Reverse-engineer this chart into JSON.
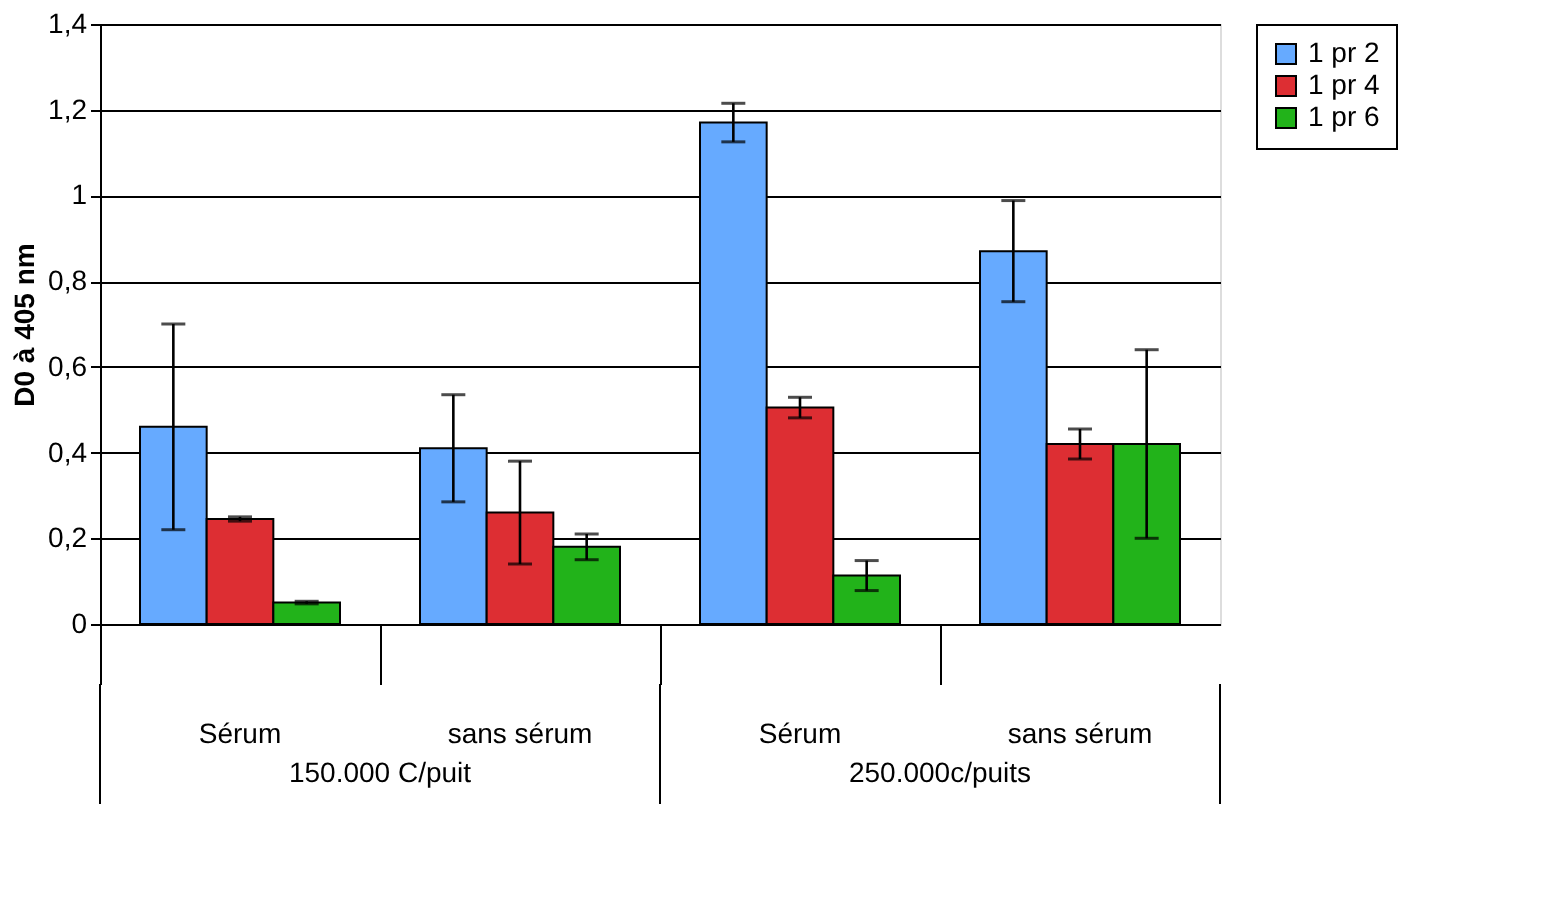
{
  "chart_data": {
    "type": "bar",
    "ylabel": "D0 à 405 nm",
    "categories": [
      "Sérum",
      "sans sérum",
      "Sérum",
      "sans sérum"
    ],
    "series": [
      {
        "name": "1 pr 2",
        "color": "#66aaff",
        "values": [
          0.46,
          0.41,
          1.17,
          0.87
        ],
        "errors": [
          0.24,
          0.125,
          0.045,
          0.118
        ]
      },
      {
        "name": "1 pr 4",
        "color": "#dd2e33",
        "values": [
          0.245,
          0.26,
          0.505,
          0.42
        ],
        "errors": [
          0.005,
          0.12,
          0.024,
          0.035
        ]
      },
      {
        "name": "1 pr 6",
        "color": "#22b31a",
        "values": [
          0.05,
          0.18,
          0.113,
          0.42
        ],
        "errors": [
          0.003,
          0.03,
          0.035,
          0.22
        ]
      }
    ],
    "annotations": [
      "150.000 C/puit",
      "250.000c/puits"
    ],
    "ylim": [
      0,
      1.4
    ],
    "yticks": [
      {
        "value": 0,
        "label": "0"
      },
      {
        "value": 0.2,
        "label": "0,2"
      },
      {
        "value": 0.4,
        "label": "0,4"
      },
      {
        "value": 0.6,
        "label": "0,6"
      },
      {
        "value": 0.8,
        "label": "0,8"
      },
      {
        "value": 1,
        "label": "1"
      },
      {
        "value": 1.2,
        "label": "1,2"
      },
      {
        "value": 1.4,
        "label": "1,4"
      }
    ],
    "grid": "y",
    "legend": "right"
  }
}
